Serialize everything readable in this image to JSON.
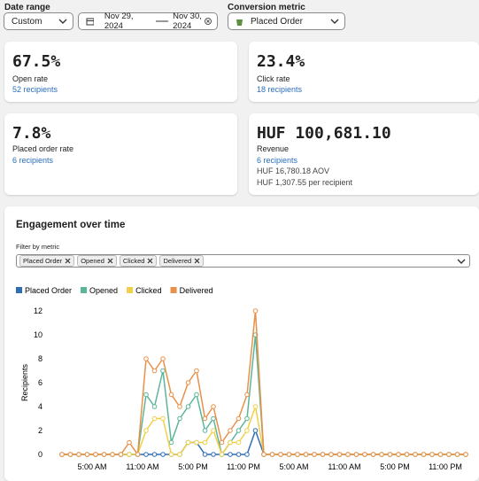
{
  "filters": {
    "date_range_label": "Date range",
    "date_range": "Custom",
    "start_date": "Nov 29, 2024",
    "end_date": "Nov 30, 2024",
    "conversion_metric_label": "Conversion metric",
    "conversion_metric": "Placed Order"
  },
  "cards": [
    {
      "value": "67.5%",
      "label": "Open rate",
      "link": "52 recipients"
    },
    {
      "value": "23.4%",
      "label": "Click rate",
      "link": "18 recipients"
    },
    {
      "value": "7.8%",
      "label": "Placed order rate",
      "link": "6 recipients"
    },
    {
      "value": "HUF 100,681.10",
      "label": "Revenue",
      "link": "6 recipients",
      "details": [
        "HUF 16,780.18 AOV",
        "HUF 1,307.55 per recipient"
      ]
    }
  ],
  "engagement": {
    "title": "Engagement over time",
    "filter_label": "Filter by metric",
    "chips": [
      "Placed Order",
      "Opened",
      "Clicked",
      "Delivered"
    ]
  },
  "chart_data": {
    "type": "line",
    "y_label": "Recipients",
    "categories": [
      null,
      null,
      null,
      null,
      "5:00 AM",
      null,
      null,
      null,
      null,
      null,
      "11:00 AM",
      null,
      null,
      null,
      null,
      null,
      "5:00 PM",
      null,
      null,
      null,
      null,
      null,
      "11:00 PM",
      null,
      null,
      null,
      null,
      null,
      "5:00 AM",
      null,
      null,
      null,
      null,
      null,
      "11:00 AM",
      null,
      null,
      null,
      null,
      null,
      "5:00 PM",
      null,
      null,
      null,
      null,
      null,
      "11:00 PM",
      null,
      null
    ],
    "series": [
      {
        "name": "Placed Order",
        "color": "#2f6db5",
        "values": [
          0,
          0,
          0,
          0,
          0,
          0,
          0,
          0,
          0,
          0,
          0,
          0,
          0,
          0,
          0,
          1,
          1,
          0,
          0,
          0,
          0,
          0,
          0,
          2,
          0,
          0,
          0,
          0,
          0,
          0,
          0,
          0,
          0,
          0,
          0,
          0,
          0,
          0,
          0,
          0,
          0,
          0,
          0,
          0,
          0,
          0,
          0,
          0,
          0
        ]
      },
      {
        "name": "Opened",
        "color": "#5bb59a",
        "values": [
          0,
          0,
          0,
          0,
          0,
          0,
          0,
          0,
          0,
          0,
          5,
          4,
          7,
          1,
          3,
          4,
          5,
          2,
          3,
          0,
          1,
          2,
          3,
          10,
          0,
          0,
          0,
          0,
          0,
          0,
          0,
          0,
          0,
          0,
          0,
          0,
          0,
          0,
          0,
          0,
          0,
          0,
          0,
          0,
          0,
          0,
          0,
          0,
          0
        ]
      },
      {
        "name": "Clicked",
        "color": "#f0d04a",
        "values": [
          0,
          0,
          0,
          0,
          0,
          0,
          0,
          0,
          0,
          0,
          2,
          3,
          3,
          0,
          0,
          1,
          1,
          1,
          2,
          0,
          1,
          1,
          2,
          4,
          0,
          0,
          0,
          0,
          0,
          0,
          0,
          0,
          0,
          0,
          0,
          0,
          0,
          0,
          0,
          0,
          0,
          0,
          0,
          0,
          0,
          0,
          0,
          0,
          0
        ]
      },
      {
        "name": "Delivered",
        "color": "#e8914a",
        "values": [
          0,
          0,
          0,
          0,
          0,
          0,
          0,
          0,
          1,
          0,
          8,
          7,
          8,
          5,
          4,
          6,
          7,
          3,
          4,
          1,
          2,
          3,
          5,
          12,
          0,
          0,
          0,
          0,
          0,
          0,
          0,
          0,
          0,
          0,
          0,
          0,
          0,
          0,
          0,
          0,
          0,
          0,
          0,
          0,
          0,
          0,
          0,
          0,
          0
        ]
      }
    ],
    "ylim": [
      0,
      12
    ],
    "yticks": [
      0,
      2,
      4,
      6,
      8,
      10,
      12
    ]
  }
}
